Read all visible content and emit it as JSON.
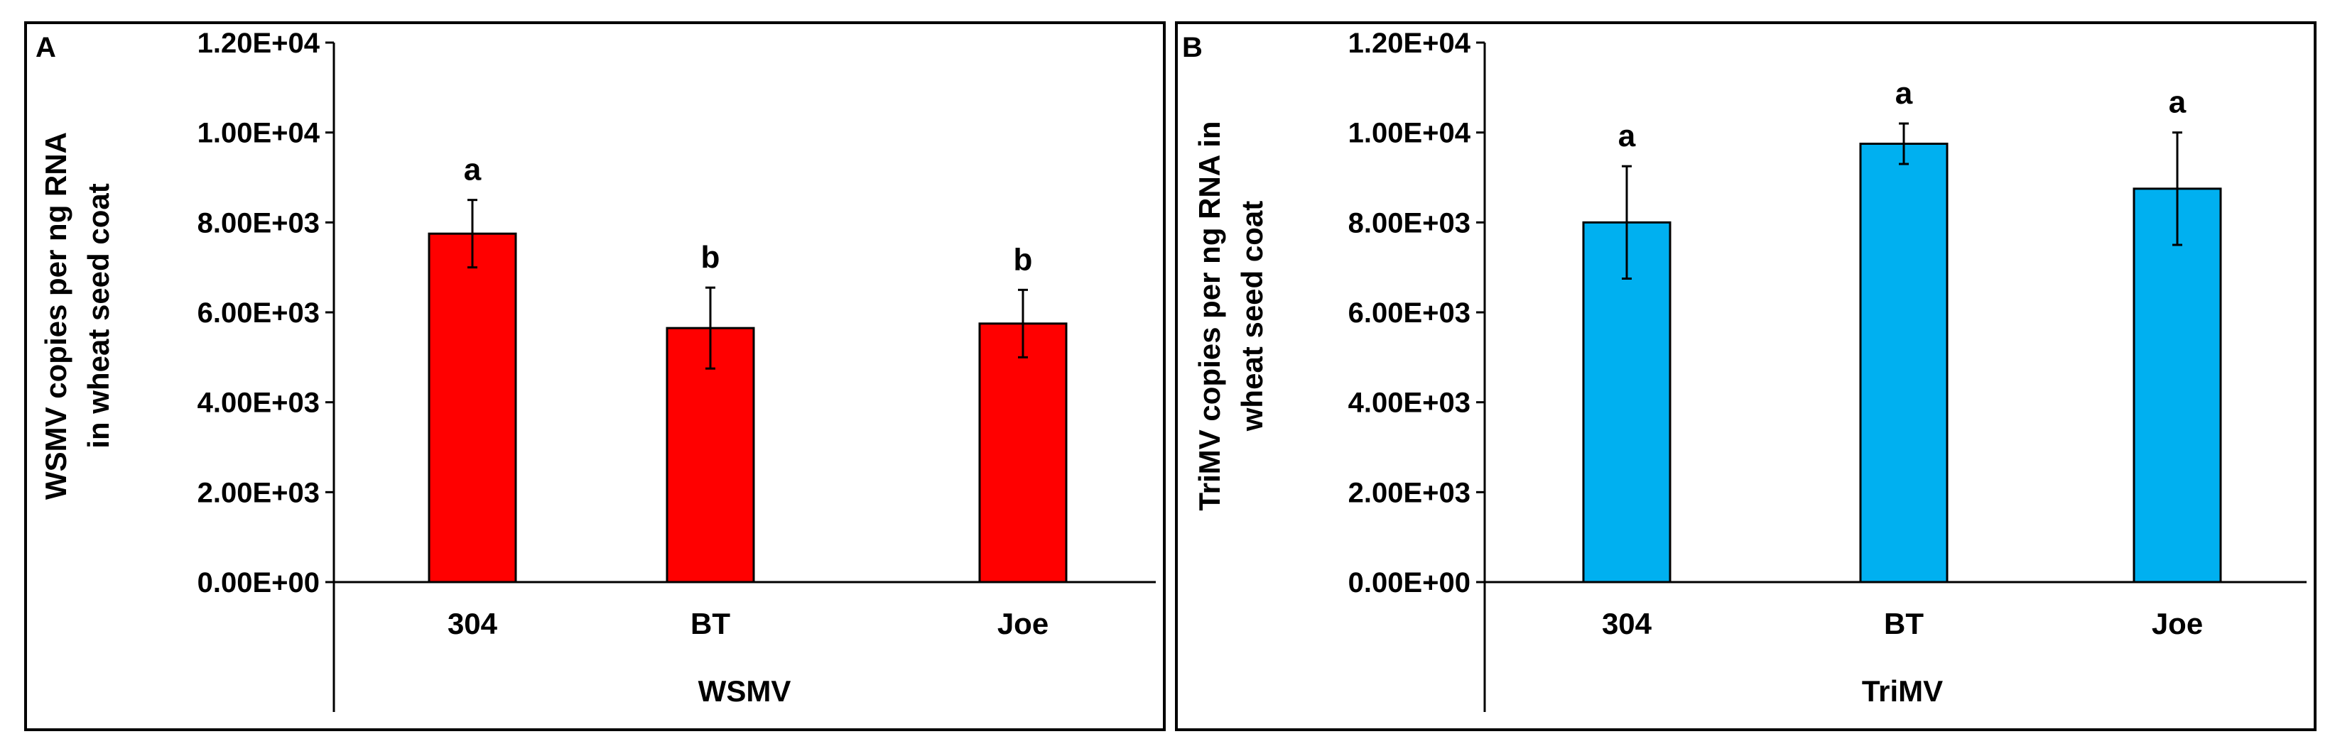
{
  "panels": [
    {
      "id": "A",
      "panel_label": "A",
      "color": "#ff0000",
      "ylabel_line1": "WSMV copies per ng RNA",
      "ylabel_line2": "in wheat seed coat",
      "xlabel": "WSMV"
    },
    {
      "id": "B",
      "panel_label": "B",
      "color": "#00b0f0",
      "ylabel_line1": "TriMV copies per ng RNA in",
      "ylabel_line2": "wheat seed coat",
      "xlabel": "TriMV"
    }
  ],
  "chart_data": [
    {
      "type": "bar",
      "title": "",
      "categories": [
        "304",
        "BT",
        "Joe"
      ],
      "values": [
        7750,
        5650,
        5750
      ],
      "error": [
        750,
        900,
        750
      ],
      "significance_letters": [
        "a",
        "b",
        "b"
      ],
      "ylim": [
        0,
        12000
      ],
      "ytick_values": [
        0,
        2000,
        4000,
        6000,
        8000,
        10000,
        12000
      ],
      "ytick_labels": [
        "0.00E+00",
        "2.00E+03",
        "4.00E+03",
        "6.00E+03",
        "8.00E+03",
        "1.00E+04",
        "1.20E+04"
      ],
      "xlabel": "WSMV",
      "ylabel": "WSMV copies per ng RNA in wheat seed coat",
      "grid": false,
      "legend": "none"
    },
    {
      "type": "bar",
      "title": "",
      "categories": [
        "304",
        "BT",
        "Joe"
      ],
      "values": [
        8000,
        9750,
        8750
      ],
      "error": [
        1250,
        450,
        1250
      ],
      "significance_letters": [
        "a",
        "a",
        "a"
      ],
      "ylim": [
        0,
        12000
      ],
      "ytick_values": [
        0,
        2000,
        4000,
        6000,
        8000,
        10000,
        12000
      ],
      "ytick_labels": [
        "0.00E+00",
        "2.00E+03",
        "4.00E+03",
        "6.00E+03",
        "8.00E+03",
        "1.00E+04",
        "1.20E+04"
      ],
      "xlabel": "TriMV",
      "ylabel": "TriMV copies per ng RNA in wheat seed coat",
      "grid": false,
      "legend": "none"
    }
  ]
}
